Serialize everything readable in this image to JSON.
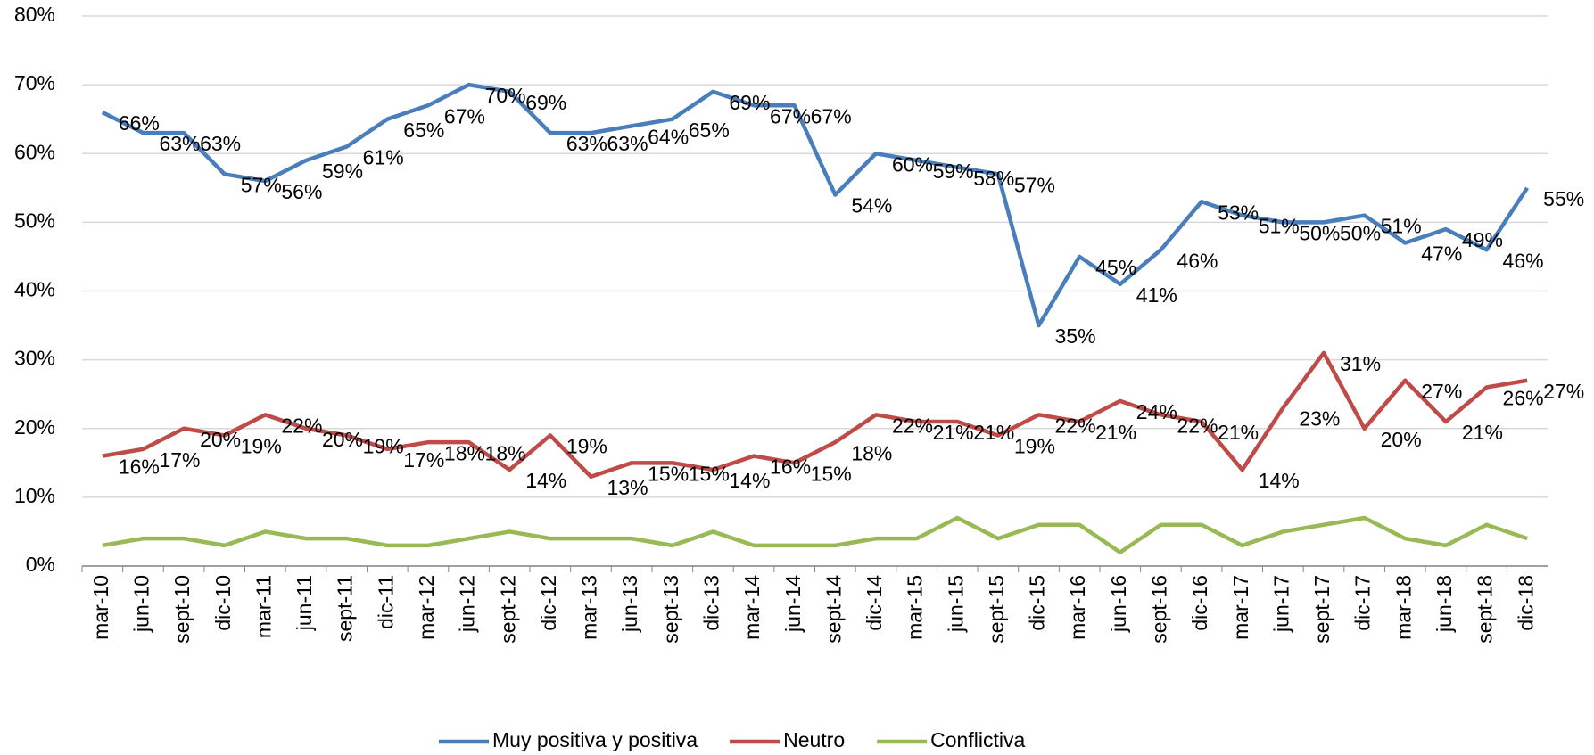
{
  "chart_data": {
    "type": "line",
    "categories": [
      "mar-10",
      "jun-10",
      "sept-10",
      "dic-10",
      "mar-11",
      "jun-11",
      "sept-11",
      "dic-11",
      "mar-12",
      "jun-12",
      "sept-12",
      "dic-12",
      "mar-13",
      "jun-13",
      "sept-13",
      "dic-13",
      "mar-14",
      "jun-14",
      "sept-14",
      "dic-14",
      "mar-15",
      "jun-15",
      "sept-15",
      "dic-15",
      "mar-16",
      "jun-16",
      "sept-16",
      "dic-16",
      "mar-17",
      "jun-17",
      "sept-17",
      "dic-17",
      "mar-18",
      "jun-18",
      "sept-18",
      "dic-18"
    ],
    "series": [
      {
        "name": "Muy positiva y positiva",
        "color": "#4a7ebb",
        "values": [
          66,
          63,
          63,
          57,
          56,
          59,
          61,
          65,
          67,
          70,
          69,
          63,
          63,
          64,
          65,
          69,
          67,
          67,
          54,
          60,
          59,
          58,
          57,
          35,
          45,
          41,
          46,
          53,
          51,
          50,
          50,
          51,
          47,
          49,
          46,
          55
        ],
        "value_labels": [
          "66%",
          "63%",
          "63%",
          "57%",
          "56%",
          "59%",
          "61%",
          "65%",
          "67%",
          "70%",
          "69%",
          "63%",
          "63%",
          "64%",
          "65%",
          "69%",
          "67%",
          "67%",
          "54%",
          "60%",
          "59%",
          "58%",
          "57%",
          "35%",
          "45%",
          "41%",
          "46%",
          "53%",
          "51%",
          "50%",
          "50%",
          "51%",
          "47%",
          "49%",
          "46%",
          "55%"
        ]
      },
      {
        "name": "Neutro",
        "color": "#be4b48",
        "values": [
          16,
          17,
          20,
          19,
          22,
          20,
          19,
          17,
          18,
          18,
          14,
          19,
          13,
          15,
          15,
          14,
          16,
          15,
          18,
          22,
          21,
          21,
          19,
          22,
          21,
          24,
          22,
          21,
          14,
          23,
          31,
          20,
          27,
          21,
          26,
          27
        ],
        "value_labels": [
          "16%",
          "17%",
          "20%",
          "19%",
          "22%",
          "20%",
          "19%",
          "17%",
          "18%",
          "18%",
          "14%",
          "19%",
          "13%",
          "15%",
          "15%",
          "14%",
          "16%",
          "15%",
          "18%",
          "22%",
          "21%",
          "21%",
          "19%",
          "22%",
          "21%",
          "24%",
          "22%",
          "21%",
          "14%",
          "23%",
          "31%",
          "20%",
          "27%",
          "21%",
          "26%",
          "27%"
        ]
      },
      {
        "name": "Conflictiva",
        "color": "#98b954",
        "values": [
          3,
          4,
          4,
          3,
          5,
          4,
          4,
          3,
          3,
          4,
          5,
          4,
          4,
          4,
          3,
          5,
          3,
          3,
          3,
          4,
          4,
          7,
          4,
          6,
          6,
          2,
          6,
          6,
          3,
          5,
          6,
          7,
          4,
          3,
          6,
          4
        ]
      }
    ],
    "ylim": [
      0,
      80
    ],
    "yticks": [
      {
        "value": 0,
        "label": "0%"
      },
      {
        "value": 10,
        "label": "10%"
      },
      {
        "value": 20,
        "label": "20%"
      },
      {
        "value": 30,
        "label": "30%"
      },
      {
        "value": 40,
        "label": "40%"
      },
      {
        "value": 50,
        "label": "50%"
      },
      {
        "value": 60,
        "label": "60%"
      },
      {
        "value": 70,
        "label": "70%"
      },
      {
        "value": 80,
        "label": "80%"
      }
    ],
    "grid": true,
    "legend": "bottom"
  }
}
